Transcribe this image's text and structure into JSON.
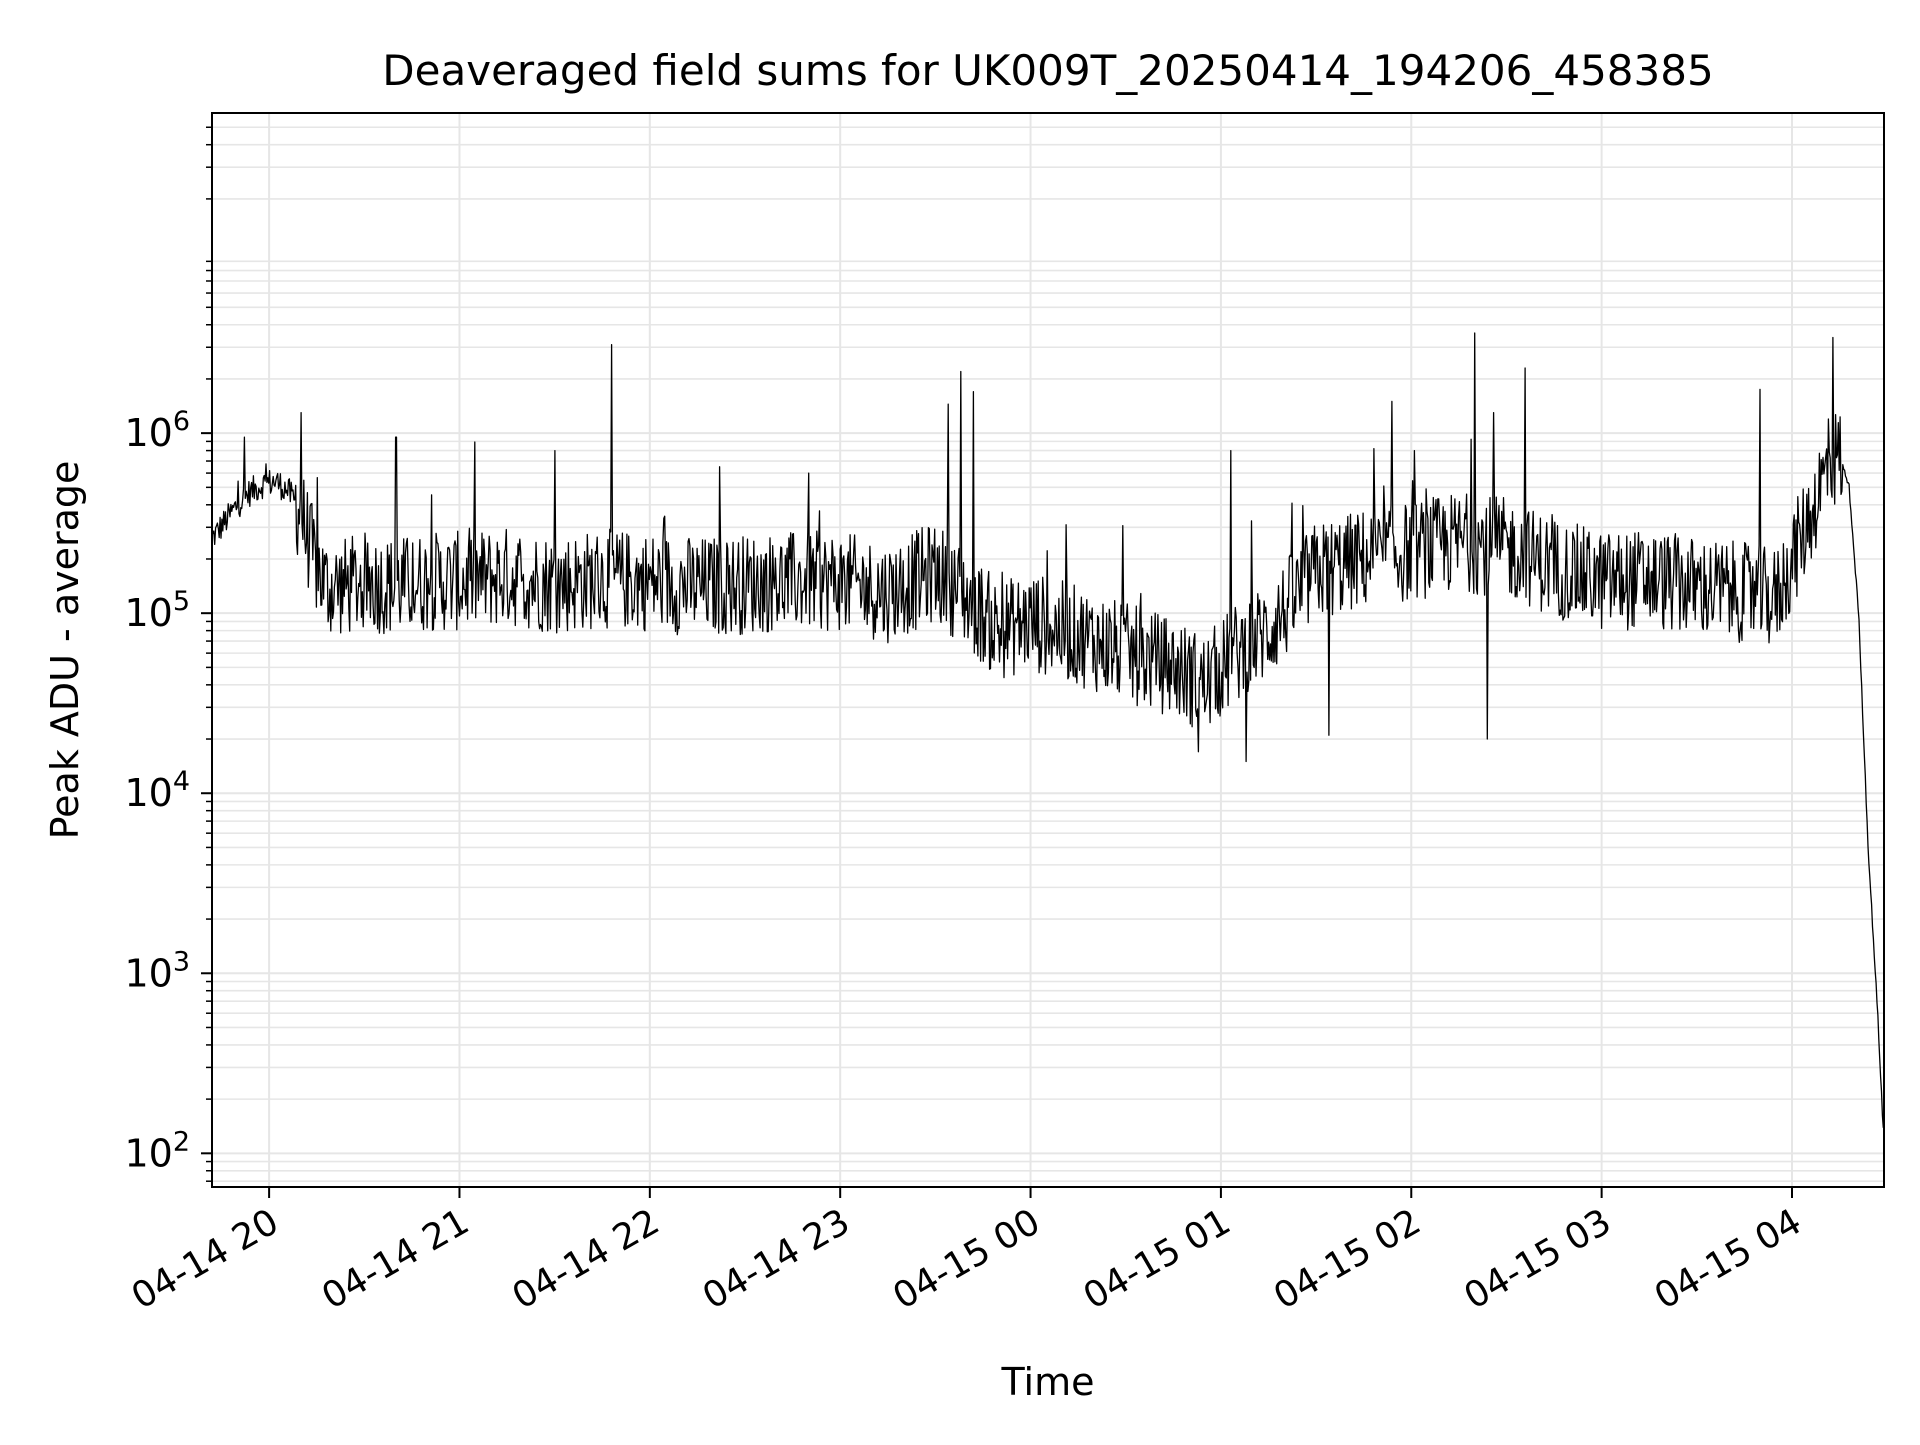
{
  "chart_data": {
    "type": "line",
    "title": "Deaveraged field sums for UK009T_20250414_194206_458385",
    "xlabel": "Time",
    "ylabel": "Peak ADU - average",
    "yscale": "log",
    "grid": true,
    "xlim": [
      "2025-04-14 19:42",
      "2025-04-15 04:29"
    ],
    "ylim": [
      65,
      60000000
    ],
    "xtick_values": [
      "2025-04-14 20:00",
      "2025-04-14 21:00",
      "2025-04-14 22:00",
      "2025-04-14 23:00",
      "2025-04-15 00:00",
      "2025-04-15 01:00",
      "2025-04-15 02:00",
      "2025-04-15 03:00",
      "2025-04-15 04:00"
    ],
    "xtick_labels": [
      "04-14 20",
      "04-14 21",
      "04-14 22",
      "04-14 23",
      "04-15 00",
      "04-15 01",
      "04-15 02",
      "04-15 03",
      "04-15 04"
    ],
    "ytick_values": [
      100,
      1000,
      10000,
      100000,
      1000000
    ],
    "ytick_labels": [
      {
        "base": "10",
        "exp": "2"
      },
      {
        "base": "10",
        "exp": "3"
      },
      {
        "base": "10",
        "exp": "4"
      },
      {
        "base": "10",
        "exp": "5"
      },
      {
        "base": "10",
        "exp": "6"
      }
    ],
    "line_color": "#000000",
    "grid_color": "#e6e6e6",
    "series": [
      {
        "x": [
          "2025-04-14 19:42",
          "2025-04-14 19:46",
          "2025-04-14 19:50",
          "2025-04-14 19:54",
          "2025-04-14 19:58",
          "2025-04-14 20:02",
          "2025-04-14 20:06",
          "2025-04-14 20:10",
          "2025-04-14 20:14",
          "2025-04-14 20:18",
          "2025-04-14 20:24",
          "2025-04-14 20:30",
          "2025-04-14 20:40",
          "2025-04-14 20:50",
          "2025-04-14 21:00",
          "2025-04-14 21:15",
          "2025-04-14 21:30",
          "2025-04-14 21:45",
          "2025-04-14 22:00",
          "2025-04-14 22:15",
          "2025-04-14 22:30",
          "2025-04-14 22:45",
          "2025-04-14 23:00",
          "2025-04-14 23:15",
          "2025-04-14 23:30",
          "2025-04-14 23:40",
          "2025-04-14 23:50",
          "2025-04-15 00:00",
          "2025-04-15 00:15",
          "2025-04-15 00:30",
          "2025-04-15 00:45",
          "2025-04-15 00:55",
          "2025-04-15 01:05",
          "2025-04-15 01:15",
          "2025-04-15 01:30",
          "2025-04-15 01:45",
          "2025-04-15 02:00",
          "2025-04-15 02:15",
          "2025-04-15 02:30",
          "2025-04-15 02:45",
          "2025-04-15 03:00",
          "2025-04-15 03:15",
          "2025-04-15 03:30",
          "2025-04-15 03:45",
          "2025-04-15 03:55",
          "2025-04-15 04:05",
          "2025-04-15 04:12",
          "2025-04-15 04:15",
          "2025-04-15 04:18",
          "2025-04-15 04:21",
          "2025-04-15 04:24",
          "2025-04-15 04:27",
          "2025-04-15 04:29"
        ],
        "y": [
          260000,
          320000,
          400000,
          470000,
          520000,
          540000,
          480000,
          360000,
          200000,
          140000,
          140000,
          150000,
          140000,
          150000,
          150000,
          160000,
          145000,
          155000,
          150000,
          140000,
          145000,
          150000,
          150000,
          130000,
          170000,
          120000,
          80000,
          90000,
          75000,
          60000,
          50000,
          40000,
          60000,
          80000,
          170000,
          200000,
          220000,
          250000,
          230000,
          180000,
          150000,
          155000,
          140000,
          130000,
          120000,
          320000,
          700000,
          750000,
          500000,
          100000,
          5000,
          600,
          110
        ]
      }
    ],
    "spikes": {
      "x": [
        "2025-04-14 20:10",
        "2025-04-14 20:40",
        "2025-04-14 21:30",
        "2025-04-14 21:48",
        "2025-04-14 22:22",
        "2025-04-14 22:50",
        "2025-04-14 23:34",
        "2025-04-14 23:38",
        "2025-04-14 23:42",
        "2025-04-15 01:03",
        "2025-04-15 01:54",
        "2025-04-15 02:20",
        "2025-04-15 02:26",
        "2025-04-15 02:36",
        "2025-04-15 03:50",
        "2025-04-15 04:13"
      ],
      "y": [
        1300000,
        950000,
        800000,
        3100000,
        650000,
        600000,
        1450000,
        2200000,
        1700000,
        800000,
        1500000,
        3600000,
        1300000,
        2300000,
        1750000,
        3400000
      ]
    },
    "dips": {
      "x": [
        "2025-04-15 00:53",
        "2025-04-15 01:08",
        "2025-04-15 01:34",
        "2025-04-15 02:24"
      ],
      "y": [
        17000,
        15000,
        21000,
        20000
      ]
    }
  }
}
